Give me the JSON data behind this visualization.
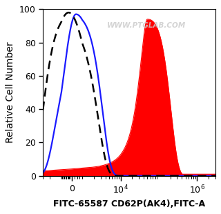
{
  "xlabel": "FITC-65587 CD62P(AK4),FITC-A",
  "ylabel": "Relative Cell Number",
  "watermark": "WWW.PTGLAB.COM",
  "ylim": [
    0,
    100
  ],
  "xlim_left": -3000,
  "xlim_right": 3000000,
  "background_color": "#ffffff",
  "plot_bg_color": "#ffffff",
  "dashed_color": "#000000",
  "blue_color": "#1a1aff",
  "red_color": "#ff0000",
  "tick_label_fontsize": 9,
  "axis_label_fontsize": 10,
  "xlabel_fontsize": 9,
  "linthresh": 1000,
  "linscale": 0.25,
  "dash_peak_x": -300,
  "dash_peak_sigma": 2000,
  "dash_peak_height": 98,
  "blue_peak_x": 400,
  "blue_peak_sigma_l": 1200,
  "blue_peak_sigma_r": 2200,
  "blue_peak_height": 97,
  "blue_shoulder_x": 3000,
  "blue_shoulder_sigma": 1500,
  "blue_shoulder_height": 21,
  "red_peak_x": 50000,
  "red_peak_sigma_l": 20000,
  "red_peak_sigma_r": 120000,
  "red_peak_height": 94,
  "red_shoulder_x": 28000,
  "red_shoulder_sigma": 7000,
  "red_shoulder_height": 26
}
